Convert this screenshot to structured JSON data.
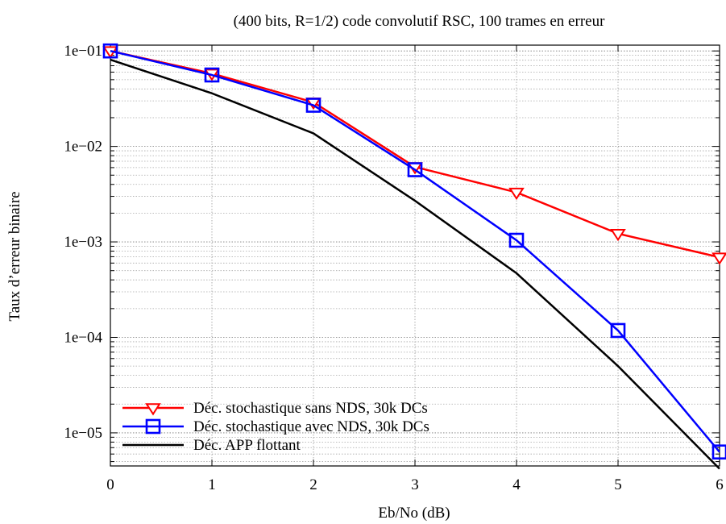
{
  "chart_data": {
    "type": "line",
    "title": "(400 bits, R=1/2) code convolutif RSC, 100 trames en erreur",
    "xlabel": "Eb/No (dB)",
    "ylabel": "Taux d’erreur binaire",
    "xlim": [
      0,
      6
    ],
    "ylim": [
      4.5e-06,
      0.115
    ],
    "yscale": "log",
    "grid": true,
    "legend_position": "bottom-left",
    "x_ticks": [
      0,
      1,
      2,
      3,
      4,
      5,
      6
    ],
    "x_tick_labels": [
      "0",
      "1",
      "2",
      "3",
      "4",
      "5",
      "6"
    ],
    "y_ticks": [
      0.1,
      0.01,
      0.001,
      0.0001,
      1e-05
    ],
    "y_tick_labels": [
      "1e−01",
      "1e−02",
      "1e−03",
      "1e−04",
      "1e−05"
    ],
    "x": [
      0,
      1,
      2,
      3,
      4,
      5,
      6
    ],
    "series": [
      {
        "name": "Déc. stochastique sans NDS, 30k DCs",
        "color": "#ff0000",
        "marker": "triangle-down",
        "values": [
          0.1,
          0.058,
          0.029,
          0.0061,
          0.0033,
          0.00122,
          0.00069
        ]
      },
      {
        "name": "Déc. stochastique avec NDS, 30k DCs",
        "color": "#0000ff",
        "marker": "square",
        "values": [
          0.1,
          0.056,
          0.027,
          0.0057,
          0.00104,
          0.000118,
          6.3e-06
        ]
      },
      {
        "name": "Déc. APP flottant",
        "color": "#000000",
        "marker": "none",
        "values": [
          0.081,
          0.036,
          0.0137,
          0.0027,
          0.00047,
          5e-05,
          4.2e-06
        ]
      }
    ]
  }
}
